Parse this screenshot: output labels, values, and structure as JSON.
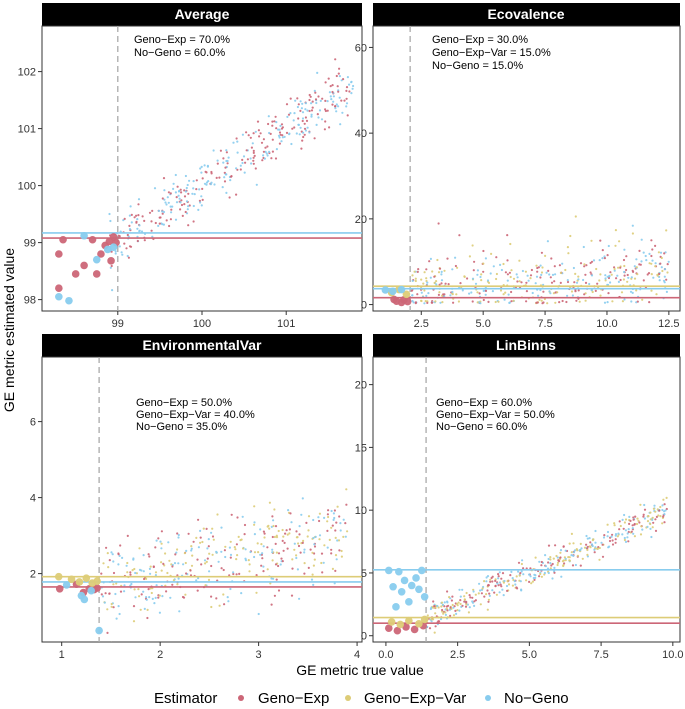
{
  "figure": {
    "xlabel": "GE metric true value",
    "ylabel": "GE metric estimated value",
    "legend": {
      "title": "Estimator",
      "entries": [
        "Geno−Exp",
        "Geno−Exp−Var",
        "No−Geno"
      ],
      "colors": [
        "#cc6677",
        "#ddcc77",
        "#88ccee"
      ]
    }
  },
  "chart_data": [
    {
      "type": "scatter",
      "title": "Average",
      "xlim": [
        98.1,
        101.9
      ],
      "ylim": [
        97.8,
        102.8
      ],
      "xticks": [
        99,
        100,
        101
      ],
      "yticks": [
        98,
        99,
        100,
        101,
        102
      ],
      "xtick_labels": [
        "99",
        "100",
        "101"
      ],
      "ytick_labels": [
        "98",
        "99",
        "100",
        "101",
        "102"
      ],
      "vline": 99,
      "hlines": {
        "Geno-Exp": 99.08,
        "No-Geno": 99.17
      },
      "annotations": [
        "Geno−Exp = 70.0%",
        "No−Geno = 60.0%"
      ],
      "series": [
        {
          "name": "Geno-Exp",
          "large_points": [
            [
              98.3,
              98.2
            ],
            [
              98.3,
              98.8
            ],
            [
              98.35,
              99.05
            ],
            [
              98.5,
              98.45
            ],
            [
              98.6,
              98.6
            ],
            [
              98.7,
              99.05
            ],
            [
              98.75,
              98.45
            ],
            [
              98.8,
              98.8
            ],
            [
              98.85,
              98.95
            ],
            [
              98.9,
              99.02
            ],
            [
              98.92,
              98.68
            ],
            [
              98.95,
              99.1
            ],
            [
              98.98,
              99.0
            ]
          ]
        },
        {
          "name": "No-Geno",
          "large_points": [
            [
              98.3,
              98.05
            ],
            [
              98.42,
              97.98
            ],
            [
              98.6,
              99.12
            ],
            [
              98.75,
              98.7
            ],
            [
              98.88,
              98.88
            ],
            [
              98.95,
              98.92
            ]
          ]
        }
      ],
      "cloud": {
        "x_from": 98.9,
        "x_to": 101.8,
        "intercept": 0.0,
        "slope": 1.0,
        "spread": 0.22,
        "count": 420
      }
    },
    {
      "type": "scatter",
      "title": "Ecovalence",
      "xlim": [
        0.55,
        12.95
      ],
      "ylim": [
        -1.5,
        65
      ],
      "xticks": [
        2.5,
        5,
        7.5,
        10,
        12.5
      ],
      "yticks": [
        0,
        20,
        40,
        60
      ],
      "xtick_labels": [
        "2.5",
        "5.0",
        "7.5",
        "10.0",
        "12.5"
      ],
      "ytick_labels": [
        "0",
        "20",
        "40",
        "60"
      ],
      "vline": 2.05,
      "hlines": {
        "Geno-Exp": 1.6,
        "Geno-Exp-Var": 4.3,
        "No-Geno": 3.7
      },
      "annotations": [
        "Geno−Exp = 30.0%",
        "Geno−Exp−Var = 15.0%",
        "No−Geno = 15.0%"
      ],
      "series": [
        {
          "name": "Geno-Exp",
          "large_points": [
            [
              1.4,
              1.2
            ],
            [
              1.5,
              0.8
            ],
            [
              1.7,
              0.5
            ],
            [
              1.8,
              1.1
            ],
            [
              1.95,
              0.7
            ]
          ]
        },
        {
          "name": "Geno-Exp-Var",
          "large_points": [
            [
              1.3,
              2.8
            ],
            [
              1.6,
              3.5
            ],
            [
              1.9,
              2.4
            ]
          ]
        },
        {
          "name": "No-Geno",
          "large_points": [
            [
              1.05,
              3.4
            ],
            [
              1.35,
              3.1
            ],
            [
              1.7,
              3.5
            ]
          ]
        }
      ],
      "cloud": {
        "x_from": 2.1,
        "x_to": 12.5,
        "intercept": 2.0,
        "slope": 0.45,
        "spread": 3.5,
        "count": 480
      }
    },
    {
      "type": "scatter",
      "title": "EnvironmentalVar",
      "xlim": [
        0.8,
        4.05
      ],
      "ylim": [
        0.2,
        7.7
      ],
      "xticks": [
        1,
        2,
        3,
        4
      ],
      "yticks": [
        2,
        4,
        6
      ],
      "xtick_labels": [
        "1",
        "2",
        "3",
        "4"
      ],
      "ytick_labels": [
        "2",
        "4",
        "6"
      ],
      "vline": 1.38,
      "hlines": {
        "Geno-Exp": 1.65,
        "Geno-Exp-Var": 1.92,
        "No-Geno": 1.78
      },
      "annotations": [
        "Geno−Exp = 50.0%",
        "Geno−Exp−Var = 40.0%",
        "No−Geno = 35.0%"
      ],
      "series": [
        {
          "name": "Geno-Exp",
          "large_points": [
            [
              0.98,
              1.6
            ],
            [
              1.15,
              1.72
            ],
            [
              1.22,
              1.5
            ],
            [
              1.28,
              1.6
            ],
            [
              1.33,
              1.58
            ],
            [
              1.36,
              1.62
            ]
          ]
        },
        {
          "name": "Geno-Exp-Var",
          "large_points": [
            [
              0.97,
              1.92
            ],
            [
              1.1,
              1.85
            ],
            [
              1.18,
              1.78
            ],
            [
              1.25,
              1.88
            ],
            [
              1.31,
              1.75
            ],
            [
              1.36,
              1.8
            ]
          ]
        },
        {
          "name": "No-Geno",
          "large_points": [
            [
              1.05,
              1.7
            ],
            [
              1.2,
              1.42
            ],
            [
              1.23,
              1.32
            ],
            [
              1.3,
              1.55
            ],
            [
              1.38,
              0.5
            ]
          ]
        }
      ],
      "cloud": {
        "x_from": 1.4,
        "x_to": 3.9,
        "intercept": 0.9,
        "slope": 0.55,
        "spread": 0.55,
        "count": 440
      }
    },
    {
      "type": "scatter",
      "title": "LinBinns",
      "xlim": [
        -0.45,
        10.25
      ],
      "ylim": [
        -0.5,
        22.2
      ],
      "xticks": [
        0,
        2.5,
        5,
        7.5,
        10
      ],
      "yticks": [
        0,
        5,
        10,
        15,
        20
      ],
      "xtick_labels": [
        "0.0",
        "2.5",
        "5.0",
        "7.5",
        "10.0"
      ],
      "ytick_labels": [
        "0",
        "5",
        "10",
        "15",
        "20"
      ],
      "vline": 1.4,
      "hlines": {
        "Geno-Exp": 1.0,
        "Geno-Exp-Var": 1.45,
        "No-Geno": 5.25
      },
      "annotations": [
        "Geno−Exp = 60.0%",
        "Geno−Exp−Var = 50.0%",
        "No−Geno = 60.0%"
      ],
      "series": [
        {
          "name": "Geno-Exp",
          "large_points": [
            [
              0.1,
              0.6
            ],
            [
              0.4,
              0.4
            ],
            [
              0.7,
              0.7
            ],
            [
              1.0,
              0.5
            ],
            [
              1.3,
              0.8
            ]
          ]
        },
        {
          "name": "Geno-Exp-Var",
          "large_points": [
            [
              0.2,
              1.1
            ],
            [
              0.5,
              0.9
            ],
            [
              0.8,
              1.2
            ],
            [
              1.15,
              0.95
            ],
            [
              1.35,
              1.3
            ]
          ]
        },
        {
          "name": "No-Geno",
          "large_points": [
            [
              0.1,
              5.2
            ],
            [
              0.25,
              3.9
            ],
            [
              0.45,
              5.1
            ],
            [
              0.55,
              3.5
            ],
            [
              0.65,
              4.4
            ],
            [
              0.8,
              2.7
            ],
            [
              0.9,
              4.0
            ],
            [
              1.05,
              4.6
            ],
            [
              1.15,
              3.7
            ],
            [
              1.25,
              5.2
            ],
            [
              1.35,
              3.1
            ],
            [
              0.35,
              2.3
            ]
          ]
        }
      ],
      "cloud": {
        "x_from": 1.4,
        "x_to": 9.8,
        "intercept": 0.0,
        "slope": 1.0,
        "spread": 0.6,
        "count": 460
      }
    }
  ]
}
